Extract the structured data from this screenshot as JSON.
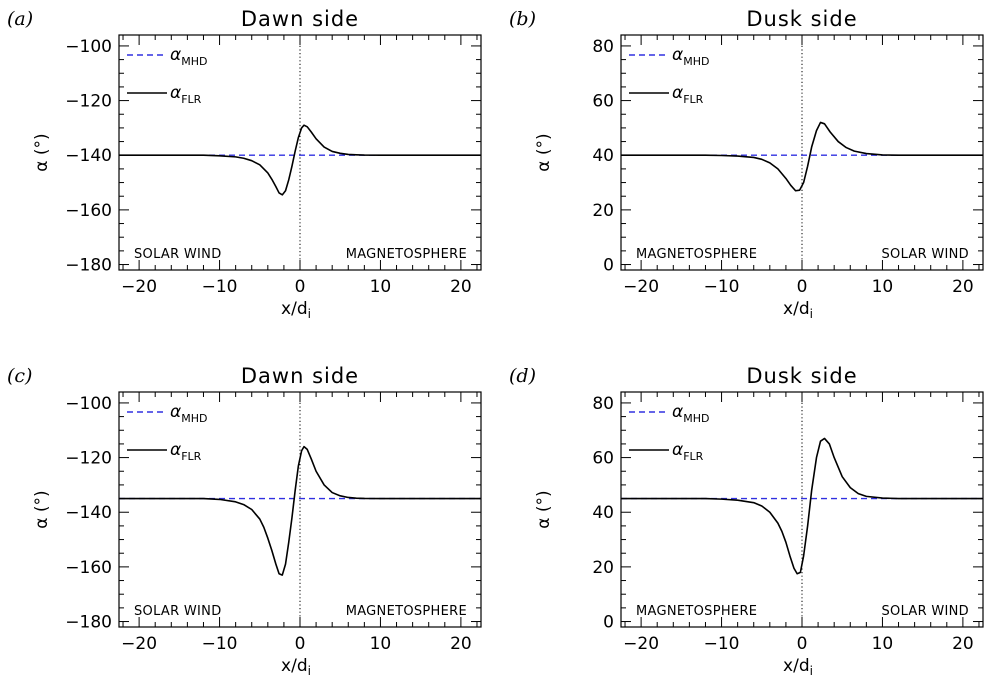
{
  "colors": {
    "mhd": "#3030e0",
    "flr": "#000000",
    "axis": "#000000",
    "center_line": "#000000"
  },
  "chart_data": [
    {
      "type": "line",
      "panel_label": "(a)",
      "title": "Dawn side",
      "xlabel": "x/d",
      "xlabel_sub": "i",
      "ylabel": "α (°)",
      "xlim": [
        -22.5,
        22.5
      ],
      "ylim": [
        -182,
        -96
      ],
      "xticks": [
        "−20",
        "−10",
        "0",
        "10",
        "20"
      ],
      "xtick_values": [
        -20,
        -10,
        0,
        10,
        20
      ],
      "yticks": [
        "−100",
        "−120",
        "−140",
        "−160",
        "−180"
      ],
      "ytick_values": [
        -100,
        -120,
        -140,
        -160,
        -180
      ],
      "left_region": "SOLAR WIND",
      "right_region": "MAGNETOSPHERE",
      "legend": [
        {
          "symbol": "α",
          "sub": "MHD",
          "style": "dashed",
          "color": "#3030e0"
        },
        {
          "symbol": "α",
          "sub": "FLR",
          "style": "solid",
          "color": "#000000"
        }
      ],
      "series": [
        {
          "name": "α_MHD",
          "style": "dashed",
          "x": [
            -22.5,
            22.5
          ],
          "y": [
            -140,
            -140
          ]
        },
        {
          "name": "α_FLR",
          "style": "solid",
          "x": [
            -22.5,
            -12,
            -10,
            -8,
            -7,
            -6,
            -5,
            -4,
            -3.5,
            -3,
            -2.6,
            -2.2,
            -1.8,
            -1.4,
            -1,
            -0.6,
            -0.2,
            0.2,
            0.5,
            0.9,
            1.4,
            2,
            3,
            4,
            5,
            6,
            7,
            8,
            10,
            12,
            22.5
          ],
          "y": [
            -140,
            -140,
            -140.2,
            -140.6,
            -141.1,
            -142,
            -143.5,
            -146.5,
            -148.8,
            -151.5,
            -153.8,
            -154.5,
            -153,
            -149,
            -144,
            -138.5,
            -133.5,
            -130,
            -129,
            -129.6,
            -131.5,
            -134,
            -137,
            -138.6,
            -139.3,
            -139.7,
            -139.85,
            -139.95,
            -140,
            -140,
            -140
          ]
        }
      ]
    },
    {
      "type": "line",
      "panel_label": "(b)",
      "title": "Dusk side",
      "xlabel": "x/d",
      "xlabel_sub": "i",
      "ylabel": "α (°)",
      "xlim": [
        -22.5,
        22.5
      ],
      "ylim": [
        -2,
        84
      ],
      "xticks": [
        "−20",
        "−10",
        "0",
        "10",
        "20"
      ],
      "xtick_values": [
        -20,
        -10,
        0,
        10,
        20
      ],
      "yticks": [
        "80",
        "60",
        "40",
        "20",
        "0"
      ],
      "ytick_values": [
        80,
        60,
        40,
        20,
        0
      ],
      "left_region": "MAGNETOSPHERE",
      "right_region": "SOLAR WIND",
      "legend": [
        {
          "symbol": "α",
          "sub": "MHD",
          "style": "dashed",
          "color": "#3030e0"
        },
        {
          "symbol": "α",
          "sub": "FLR",
          "style": "solid",
          "color": "#000000"
        }
      ],
      "series": [
        {
          "name": "α_MHD",
          "style": "dashed",
          "x": [
            -22.5,
            22.5
          ],
          "y": [
            40,
            40
          ]
        },
        {
          "name": "α_FLR",
          "style": "solid",
          "x": [
            -22.5,
            -12,
            -10,
            -8,
            -6,
            -5,
            -4,
            -3,
            -2,
            -1.4,
            -0.8,
            -0.3,
            0.2,
            0.7,
            1.2,
            1.8,
            2.3,
            2.8,
            3.5,
            4.5,
            5.5,
            6.5,
            8,
            10,
            12,
            22.5
          ],
          "y": [
            40,
            40,
            39.9,
            39.7,
            39.2,
            38.5,
            37.2,
            35,
            31.5,
            29,
            27,
            27.2,
            30,
            36,
            43,
            49,
            52,
            51.5,
            48.5,
            45,
            42.8,
            41.5,
            40.6,
            40.1,
            40,
            40
          ]
        }
      ]
    },
    {
      "type": "line",
      "panel_label": "(c)",
      "title": "Dawn side",
      "xlabel": "x/d",
      "xlabel_sub": "i",
      "ylabel": "α (°)",
      "xlim": [
        -22.5,
        22.5
      ],
      "ylim": [
        -182,
        -96
      ],
      "xticks": [
        "−20",
        "−10",
        "0",
        "10",
        "20"
      ],
      "xtick_values": [
        -20,
        -10,
        0,
        10,
        20
      ],
      "yticks": [
        "−100",
        "−120",
        "−140",
        "−160",
        "−180"
      ],
      "ytick_values": [
        -100,
        -120,
        -140,
        -160,
        -180
      ],
      "left_region": "SOLAR WIND",
      "right_region": "MAGNETOSPHERE",
      "legend": [
        {
          "symbol": "α",
          "sub": "MHD",
          "style": "dashed",
          "color": "#3030e0"
        },
        {
          "symbol": "α",
          "sub": "FLR",
          "style": "solid",
          "color": "#000000"
        }
      ],
      "series": [
        {
          "name": "α_MHD",
          "style": "dashed",
          "x": [
            -22.5,
            22.5
          ],
          "y": [
            -135,
            -135
          ]
        },
        {
          "name": "α_FLR",
          "style": "solid",
          "x": [
            -22.5,
            -12,
            -10,
            -8,
            -7,
            -6,
            -5,
            -4.5,
            -4,
            -3.5,
            -3,
            -2.6,
            -2.2,
            -1.8,
            -1.4,
            -1,
            -0.6,
            -0.2,
            0.2,
            0.5,
            0.9,
            1.4,
            2,
            3,
            4,
            5,
            6,
            7,
            8,
            10,
            12,
            22.5
          ],
          "y": [
            -135,
            -135,
            -135.3,
            -136.2,
            -137.2,
            -139,
            -142.5,
            -145.5,
            -149.5,
            -154,
            -159,
            -162.5,
            -163,
            -159,
            -151,
            -142,
            -132,
            -123,
            -117.5,
            -116,
            -117,
            -120.5,
            -125,
            -130,
            -132.8,
            -134,
            -134.6,
            -134.85,
            -134.95,
            -135,
            -135,
            -135
          ]
        }
      ]
    },
    {
      "type": "line",
      "panel_label": "(d)",
      "title": "Dusk side",
      "xlabel": "x/d",
      "xlabel_sub": "i",
      "ylabel": "α (°)",
      "xlim": [
        -22.5,
        22.5
      ],
      "ylim": [
        -2,
        84
      ],
      "xticks": [
        "−20",
        "−10",
        "0",
        "10",
        "20"
      ],
      "xtick_values": [
        -20,
        -10,
        0,
        10,
        20
      ],
      "yticks": [
        "80",
        "60",
        "40",
        "20",
        "0"
      ],
      "ytick_values": [
        80,
        60,
        40,
        20,
        0
      ],
      "left_region": "MAGNETOSPHERE",
      "right_region": "SOLAR WIND",
      "legend": [
        {
          "symbol": "α",
          "sub": "MHD",
          "style": "dashed",
          "color": "#3030e0"
        },
        {
          "symbol": "α",
          "sub": "FLR",
          "style": "solid",
          "color": "#000000"
        }
      ],
      "series": [
        {
          "name": "α_MHD",
          "style": "dashed",
          "x": [
            -22.5,
            22.5
          ],
          "y": [
            45,
            45
          ]
        },
        {
          "name": "α_FLR",
          "style": "solid",
          "x": [
            -22.5,
            -12,
            -10,
            -8,
            -6,
            -5,
            -4,
            -3,
            -2.5,
            -2,
            -1.5,
            -1,
            -0.6,
            -0.2,
            0.2,
            0.7,
            1.2,
            1.8,
            2.3,
            2.8,
            3.4,
            4,
            5,
            6,
            7,
            8,
            10,
            12,
            22.5
          ],
          "y": [
            45,
            45,
            44.8,
            44.4,
            43.5,
            42.3,
            40,
            36,
            33,
            29,
            24,
            19.5,
            17.5,
            18,
            24,
            35,
            48,
            60,
            66,
            67,
            65,
            60,
            53,
            49,
            46.8,
            45.8,
            45.2,
            45,
            45
          ]
        }
      ]
    }
  ]
}
